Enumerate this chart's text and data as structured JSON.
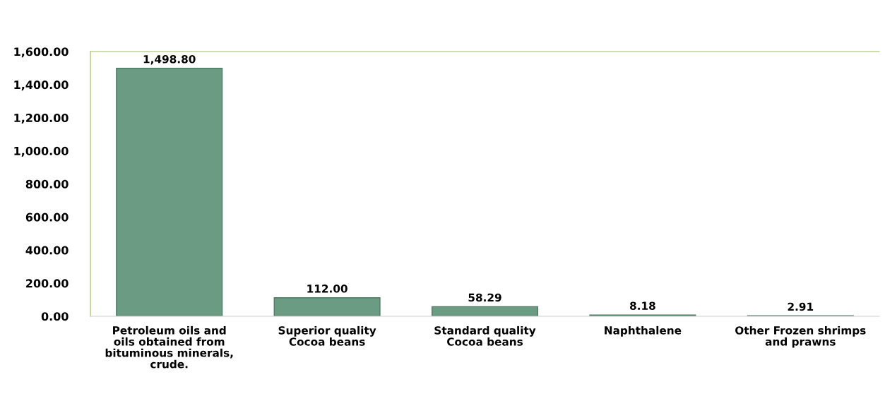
{
  "chart_data": {
    "type": "bar",
    "categories": [
      "Petroleum oils and\noils obtained from\nbituminous minerals,\ncrude.",
      "Superior quality\nCocoa beans",
      "Standard quality\nCocoa beans",
      "Naphthalene",
      "Other Frozen shrimps\nand prawns"
    ],
    "values": [
      1498.8,
      112.0,
      58.29,
      8.18,
      2.91
    ],
    "color": "#6b9c83",
    "value_labels": [
      "1,498.80",
      "112.00",
      "58.29",
      "8.18",
      "2.91"
    ],
    "ylim": [
      0,
      1600
    ],
    "yticks": [
      {
        "value": 0,
        "label": "0.00"
      },
      {
        "value": 200,
        "label": "200.00"
      },
      {
        "value": 400,
        "label": "400.00"
      },
      {
        "value": 600,
        "label": "600.00"
      },
      {
        "value": 800,
        "label": "800.00"
      },
      {
        "value": 1000,
        "label": "1,000.00"
      },
      {
        "value": 1200,
        "label": "1,200.00"
      },
      {
        "value": 1400,
        "label": "1,400.00"
      },
      {
        "value": 1600,
        "label": "1,600.00"
      }
    ]
  }
}
